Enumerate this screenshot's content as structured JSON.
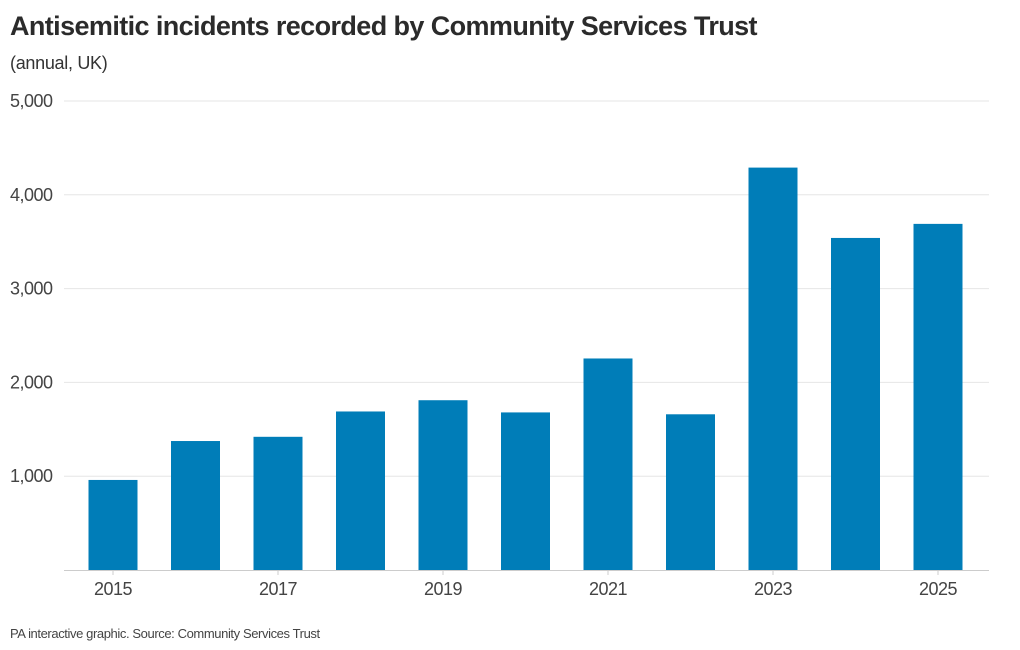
{
  "header": {
    "title": "Antisemitic incidents recorded by Community Services Trust",
    "subtitle": "(annual, UK)"
  },
  "footer": {
    "source": "PA interactive graphic. Source: Community Services Trust"
  },
  "colors": {
    "bar": "#007db8",
    "grid": "#e6e6e6",
    "axis": "#cccccc"
  },
  "chart_data": {
    "type": "bar",
    "title": "Antisemitic incidents recorded by Community Services Trust",
    "subtitle": "(annual, UK)",
    "xlabel": "",
    "ylabel": "",
    "categories": [
      "2015",
      "2016",
      "2017",
      "2018",
      "2019",
      "2020",
      "2021",
      "2022",
      "2023",
      "2024",
      "2025"
    ],
    "values": [
      960,
      1375,
      1420,
      1690,
      1810,
      1680,
      2255,
      1660,
      4290,
      3540,
      3690
    ],
    "ylim": [
      0,
      5000
    ],
    "yticks": [
      1000,
      2000,
      3000,
      4000,
      5000
    ],
    "ytick_labels": [
      "1,000",
      "2,000",
      "3,000",
      "4,000",
      "5,000"
    ],
    "xtick_labels": [
      "2015",
      "2017",
      "2019",
      "2021",
      "2023",
      "2025"
    ],
    "grid": true,
    "legend": "none"
  }
}
